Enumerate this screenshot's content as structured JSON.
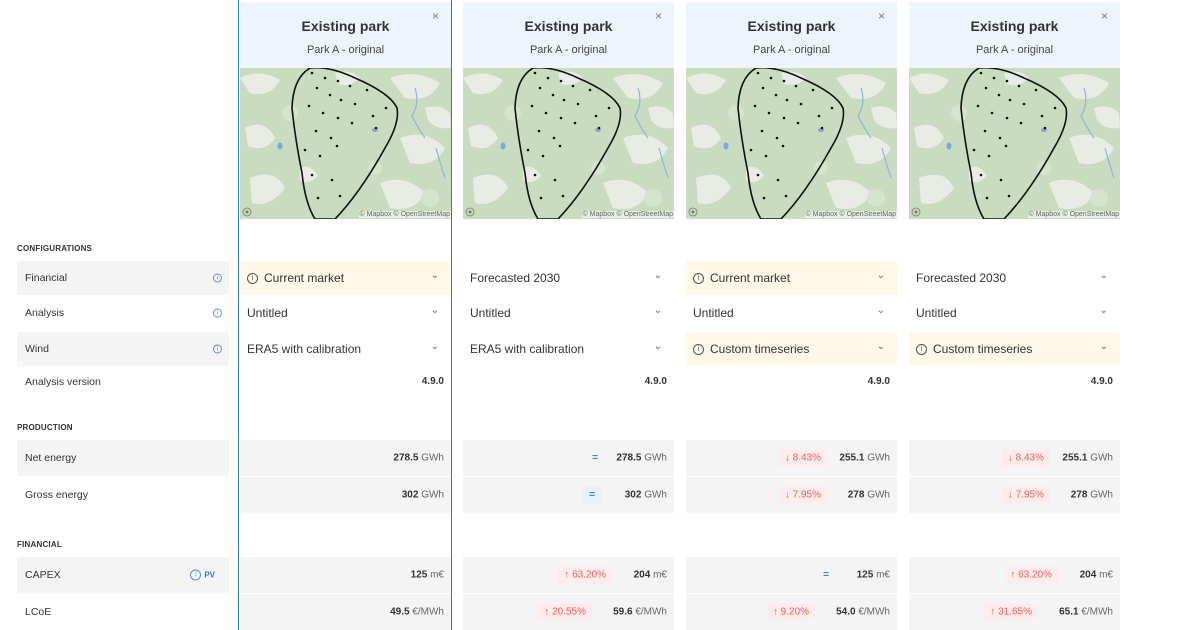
{
  "sections": {
    "configurations": "CONFIGURATIONS",
    "production": "PRODUCTION",
    "financial": "FINANCIAL"
  },
  "row_labels": {
    "financial": "Financial",
    "analysis": "Analysis",
    "wind": "Wind",
    "analysis_version": "Analysis version",
    "net_energy": "Net energy",
    "gross_energy": "Gross energy",
    "capex": "CAPEX",
    "lcoe": "LCoE",
    "pv": "PV"
  },
  "map_credit": "© Mapbox © OpenStreetMap",
  "parks": [
    {
      "title": "Existing park",
      "subtitle": "Park A - original",
      "close": "×",
      "financial": "Current market",
      "financial_warn": true,
      "analysis": "Untitled",
      "wind": "ERA5 with calibration",
      "wind_warn": false,
      "version": "4.9.0",
      "net_delta": "",
      "net_delta_kind": "none",
      "net_value": "278.5",
      "net_unit": "GWh",
      "gross_delta": "",
      "gross_delta_kind": "none",
      "gross_value": "302",
      "gross_unit": "GWh",
      "capex_delta": "",
      "capex_delta_kind": "none",
      "capex_value": "125",
      "capex_unit": "m€",
      "lcoe_delta": "",
      "lcoe_delta_kind": "none",
      "lcoe_value": "49.5",
      "lcoe_unit": "€/MWh"
    },
    {
      "title": "Existing park",
      "subtitle": "Park A - original",
      "close": "×",
      "financial": "Forecasted 2030",
      "financial_warn": false,
      "analysis": "Untitled",
      "wind": "ERA5 with calibration",
      "wind_warn": false,
      "version": "4.9.0",
      "net_delta": "=",
      "net_delta_kind": "eq-plain",
      "net_value": "278.5",
      "net_unit": "GWh",
      "gross_delta": "=",
      "gross_delta_kind": "eq",
      "gross_value": "302",
      "gross_unit": "GWh",
      "capex_delta": "↑ 63.20%",
      "capex_delta_kind": "up",
      "capex_value": "204",
      "capex_unit": "m€",
      "lcoe_delta": "↑ 20.55%",
      "lcoe_delta_kind": "up",
      "lcoe_value": "59.6",
      "lcoe_unit": "€/MWh"
    },
    {
      "title": "Existing park",
      "subtitle": "Park A - original",
      "close": "×",
      "financial": "Current market",
      "financial_warn": true,
      "analysis": "Untitled",
      "wind": "Custom timeseries",
      "wind_warn": true,
      "version": "4.9.0",
      "net_delta": "↓ 8.43%",
      "net_delta_kind": "down",
      "net_value": "255.1",
      "net_unit": "GWh",
      "gross_delta": "↓ 7.95%",
      "gross_delta_kind": "down",
      "gross_value": "278",
      "gross_unit": "GWh",
      "capex_delta": "=",
      "capex_delta_kind": "eq-plain",
      "capex_value": "125",
      "capex_unit": "m€",
      "lcoe_delta": "↑ 9.20%",
      "lcoe_delta_kind": "up",
      "lcoe_value": "54.0",
      "lcoe_unit": "€/MWh"
    },
    {
      "title": "Existing park",
      "subtitle": "Park A - original",
      "close": "×",
      "financial": "Forecasted 2030",
      "financial_warn": false,
      "analysis": "Untitled",
      "wind": "Custom timeseries",
      "wind_warn": true,
      "version": "4.9.0",
      "net_delta": "↓ 8.43%",
      "net_delta_kind": "down",
      "net_value": "255.1",
      "net_unit": "GWh",
      "gross_delta": "↓ 7.95%",
      "gross_delta_kind": "down",
      "gross_value": "278",
      "gross_unit": "GWh",
      "capex_delta": "↑ 63.20%",
      "capex_delta_kind": "up",
      "capex_value": "204",
      "capex_unit": "m€",
      "lcoe_delta": "↑ 31.65%",
      "lcoe_delta_kind": "up",
      "lcoe_value": "65.1",
      "lcoe_unit": "€/MWh"
    }
  ],
  "colors": {
    "selected_border": "#2f78c4",
    "warn_bg": "#fff7e8",
    "header_bg": "#eef4fb",
    "delta_red": "#ef5b5b",
    "delta_blue": "#3c86d8"
  }
}
